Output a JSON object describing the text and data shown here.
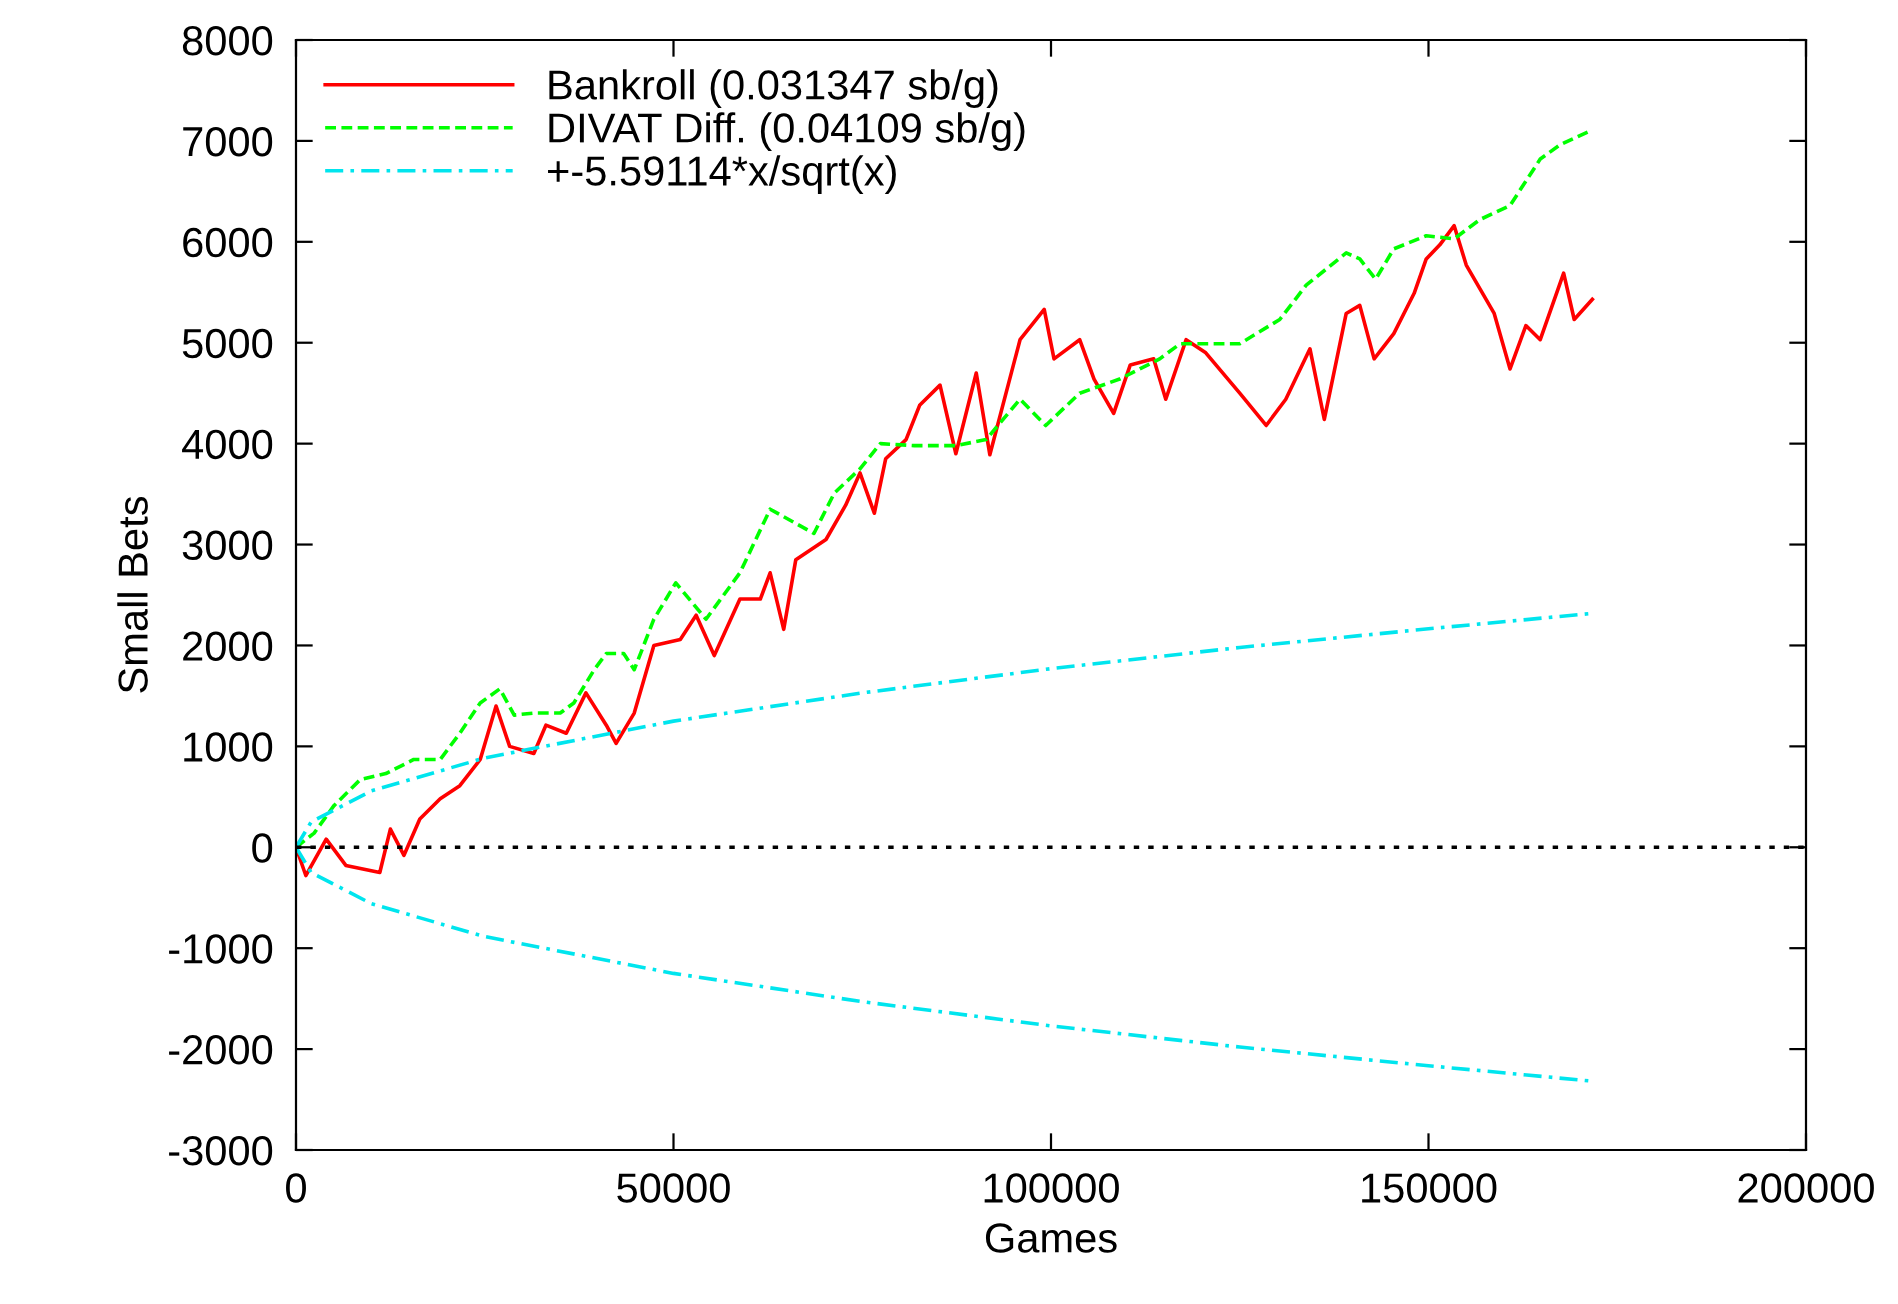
{
  "chart_data": {
    "type": "line",
    "xlabel": "Games",
    "ylabel": "Small Bets",
    "xlim": [
      0,
      200000
    ],
    "ylim": [
      -3000,
      8000
    ],
    "xticks": [
      0,
      50000,
      100000,
      150000,
      200000
    ],
    "yticks": [
      -3000,
      -2000,
      -1000,
      0,
      1000,
      2000,
      3000,
      4000,
      5000,
      6000,
      7000,
      8000
    ],
    "grid": false,
    "legend": "top left",
    "marker": "none",
    "ref_lines": [
      {
        "axis": "y",
        "value": 0,
        "color": "#000000",
        "line_style": "dotted"
      }
    ],
    "series": [
      {
        "name": "Bankroll (0.031347 sb/g)",
        "color": "#ff0000",
        "line_style": "solid",
        "x": [
          0,
          1300,
          4000,
          6600,
          11100,
          12500,
          14300,
          16400,
          19100,
          21700,
          24400,
          26500,
          28300,
          31500,
          33100,
          35800,
          38400,
          41100,
          42400,
          44800,
          47400,
          50900,
          53000,
          55400,
          58800,
          61500,
          62800,
          64600,
          66200,
          70200,
          72800,
          74700,
          76600,
          78100,
          80800,
          82600,
          85300,
          87400,
          90100,
          91900,
          95900,
          99100,
          100400,
          103800,
          105700,
          108300,
          110500,
          113600,
          115200,
          117900,
          120500,
          125000,
          128500,
          131100,
          134300,
          136200,
          139100,
          140900,
          142800,
          145400,
          148100,
          149700,
          151500,
          153400,
          155000,
          158700,
          160800,
          162900,
          164800,
          167900,
          169300,
          171700
        ],
        "values": [
          0,
          -280,
          80,
          -180,
          -250,
          180,
          -80,
          280,
          480,
          610,
          870,
          1400,
          1000,
          930,
          1210,
          1130,
          1530,
          1210,
          1030,
          1330,
          2000,
          2060,
          2300,
          1900,
          2460,
          2460,
          2720,
          2160,
          2850,
          3050,
          3390,
          3710,
          3310,
          3850,
          4040,
          4380,
          4580,
          3900,
          4700,
          3890,
          5030,
          5330,
          4840,
          5030,
          4640,
          4300,
          4780,
          4840,
          4440,
          5030,
          4900,
          4500,
          4180,
          4440,
          4940,
          4240,
          5290,
          5370,
          4840,
          5090,
          5490,
          5830,
          5970,
          6160,
          5770,
          5290,
          4740,
          5170,
          5030,
          5690,
          5230,
          5430
        ]
      },
      {
        "name": "DIVAT Diff. (0.04109 sb/g)",
        "color": "#00ff00",
        "line_style": "dashed",
        "x": [
          0,
          2400,
          5000,
          8500,
          11900,
          15600,
          19100,
          21700,
          24400,
          27000,
          28900,
          31500,
          35000,
          36800,
          39500,
          41100,
          43400,
          44800,
          47400,
          50300,
          54300,
          58800,
          62800,
          68600,
          71300,
          74700,
          77400,
          81900,
          87400,
          91400,
          95900,
          99300,
          103800,
          109100,
          114400,
          117100,
          125000,
          130300,
          133800,
          139100,
          140900,
          143000,
          145400,
          149700,
          153400,
          156800,
          160800,
          164800,
          167400,
          171700
        ],
        "values": [
          0,
          140,
          410,
          670,
          730,
          870,
          870,
          1130,
          1430,
          1570,
          1310,
          1330,
          1330,
          1430,
          1760,
          1920,
          1920,
          1760,
          2260,
          2620,
          2260,
          2720,
          3350,
          3110,
          3510,
          3750,
          4000,
          3980,
          3980,
          4040,
          4440,
          4180,
          4500,
          4640,
          4840,
          4990,
          4990,
          5230,
          5570,
          5890,
          5830,
          5630,
          5930,
          6060,
          6030,
          6220,
          6360,
          6820,
          6960,
          7110
        ]
      },
      {
        "name": "+-5.59114*x/sqrt(x)",
        "color": "#00e5ee",
        "line_style": "dashdot",
        "x": [
          0,
          2000,
          10000,
          25000,
          50000,
          75000,
          100000,
          125000,
          150000,
          172000
        ],
        "values": [
          0,
          250,
          560,
          885,
          1250,
          1530,
          1770,
          1980,
          2165,
          2320
        ]
      },
      {
        "color": "#00e5ee",
        "line_style": "dashdot",
        "x": [
          0,
          2000,
          10000,
          25000,
          50000,
          75000,
          100000,
          125000,
          150000,
          172000
        ],
        "values": [
          0,
          -250,
          -560,
          -885,
          -1250,
          -1530,
          -1770,
          -1980,
          -2165,
          -2320
        ]
      }
    ]
  }
}
